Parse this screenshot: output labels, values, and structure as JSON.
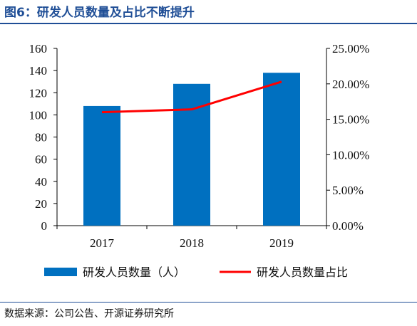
{
  "title": "图6：研发人员数量及占比不断提升",
  "source": "数据来源：公司公告、开源证券研究所",
  "colors": {
    "bar": "#0070c0",
    "line": "#ff0000",
    "accent": "#1f4e96"
  },
  "chart_data": {
    "type": "bar",
    "categories": [
      "2017",
      "2018",
      "2019"
    ],
    "series": [
      {
        "name": "研发人员数量（人）",
        "type": "bar",
        "axis": "left",
        "values": [
          108,
          128,
          138
        ]
      },
      {
        "name": "研发人员数量占比",
        "type": "line",
        "axis": "right",
        "values": [
          16.0,
          16.4,
          20.3
        ]
      }
    ],
    "ylim": [
      0,
      160
    ],
    "y_ticks": [
      "0",
      "20",
      "40",
      "60",
      "80",
      "100",
      "120",
      "140",
      "160"
    ],
    "y2lim": [
      0,
      25
    ],
    "y2_ticks": [
      "0.00%",
      "5.00%",
      "10.00%",
      "15.00%",
      "20.00%",
      "25.00%"
    ],
    "legend": "bottom",
    "grid": false
  }
}
